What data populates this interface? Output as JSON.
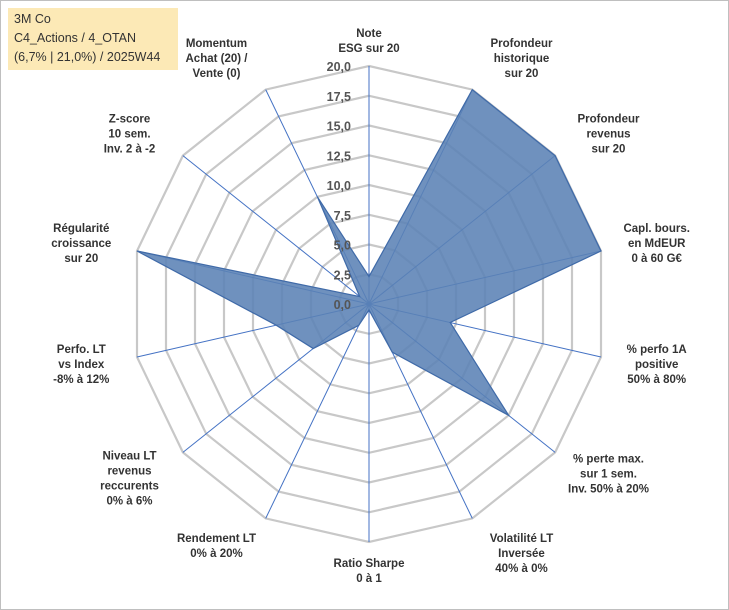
{
  "legend": {
    "line1": "3M Co",
    "line2": "C4_Actions / 4_OTAN",
    "line3": "(6,7% | 21,0%) / 2025W44"
  },
  "colors": {
    "fill": "#5b82b5",
    "stroke": "#3f6aa8",
    "grid": "#c8c8c8",
    "spoke": "#4472c4",
    "legend_bg": "#fce9b6"
  },
  "chart_data": {
    "type": "radar",
    "rmin": 0,
    "rmax": 20,
    "ticks": [
      0,
      2.5,
      5,
      7.5,
      10,
      12.5,
      15,
      17.5,
      20
    ],
    "tick_labels": [
      "0,0",
      "2,5",
      "5,0",
      "7,5",
      "10,0",
      "12,5",
      "15,0",
      "17,5",
      "20,0"
    ],
    "axes": [
      {
        "label": [
          "Note",
          "ESG sur 20"
        ],
        "value": 2.3
      },
      {
        "label": [
          "Profondeur",
          "historique",
          "sur 20"
        ],
        "value": 20
      },
      {
        "label": [
          "Profondeur",
          "revenus",
          "sur 20"
        ],
        "value": 20
      },
      {
        "label": [
          "Capl. bours.",
          "en MdEUR",
          "0 à 60 G€"
        ],
        "value": 20
      },
      {
        "label": [
          "% perfo 1A",
          "positive",
          "50% à 80%"
        ],
        "value": 7
      },
      {
        "label": [
          "% perte max.",
          "sur 1 sem.",
          "Inv. 50% à 20%"
        ],
        "value": 15
      },
      {
        "label": [
          "Volatilité LT",
          "Inversée",
          "40% à 0%"
        ],
        "value": 4.5
      },
      {
        "label": [
          "Ratio Sharpe",
          "0 à 1"
        ],
        "value": 0.5
      },
      {
        "label": [
          "Rendement LT",
          "0% à 20%"
        ],
        "value": 2
      },
      {
        "label": [
          "Niveau LT",
          "revenus",
          "reccurents",
          "0% à 6%"
        ],
        "value": 6
      },
      {
        "label": [
          "Perfo. LT",
          "vs Index",
          "-8% à 12%"
        ],
        "value": 8
      },
      {
        "label": [
          "Régularité",
          "croissance",
          "sur 20"
        ],
        "value": 20
      },
      {
        "label": [
          "Z-score",
          "10 sem.",
          "Inv. 2 à -2"
        ],
        "value": 1
      },
      {
        "label": [
          "Momentum",
          "Achat (20) /",
          "Vente (0)"
        ],
        "value": 10
      }
    ]
  }
}
